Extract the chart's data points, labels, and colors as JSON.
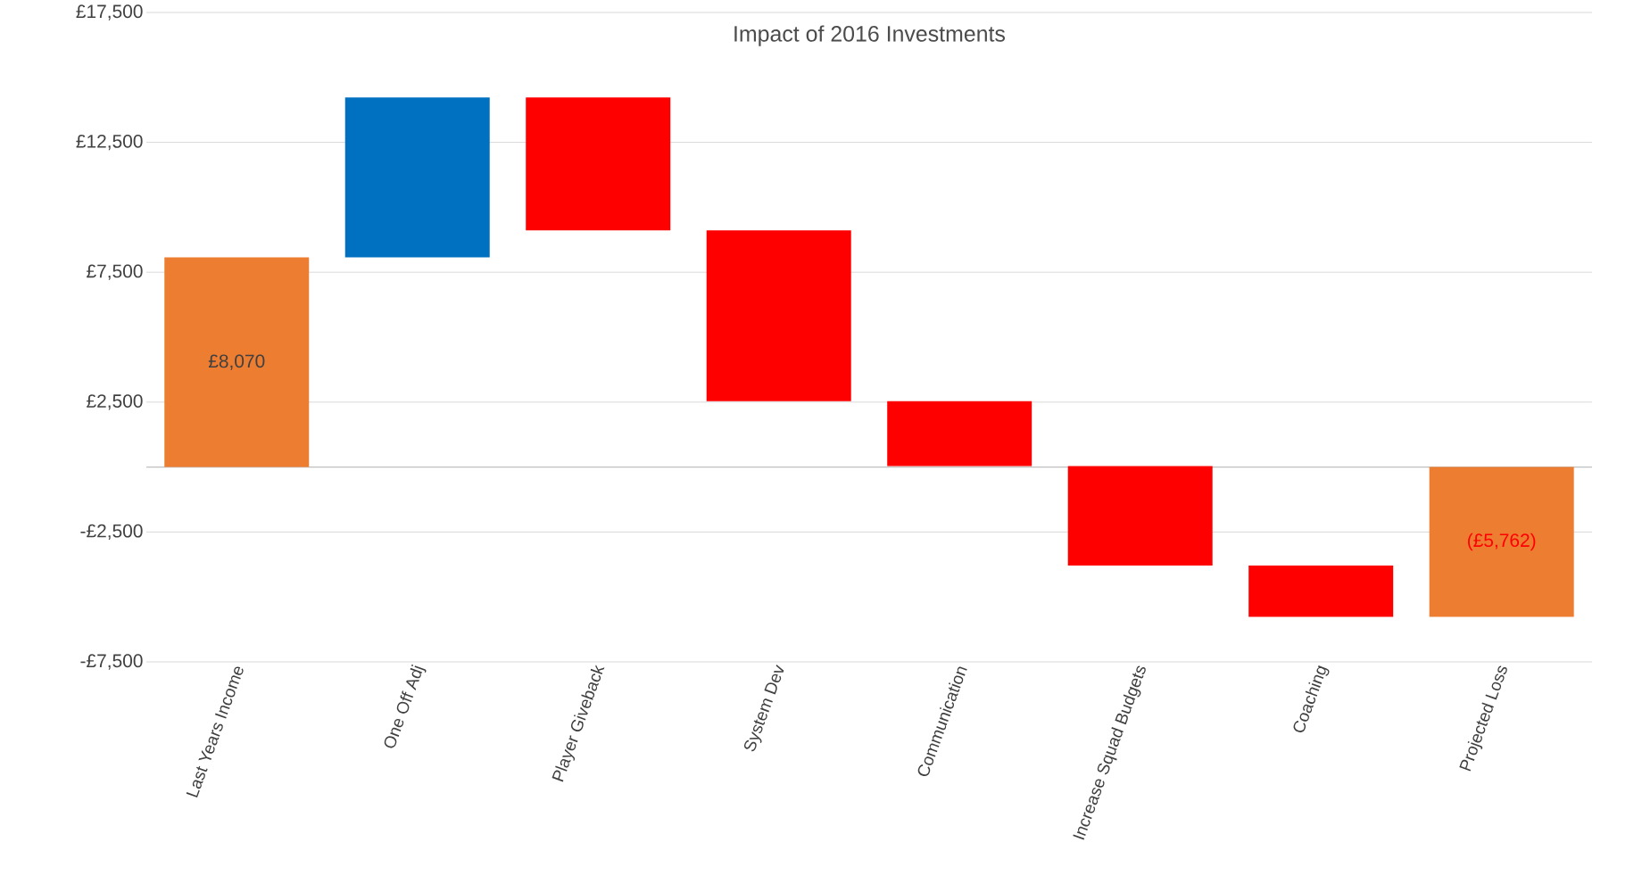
{
  "chart_data": {
    "type": "bar",
    "title": "Impact of 2016 Investments",
    "categories": [
      "Last Years Income",
      "One Off Adj",
      "Player Giveback",
      "System Dev",
      "Communication",
      "Increase Squad Budgets",
      "Coaching",
      "Projected Loss"
    ],
    "values": [
      8070,
      6160,
      -5120,
      -6570,
      -2500,
      -3830,
      -1972,
      -5762
    ],
    "base": [
      0,
      8070,
      14230,
      9110,
      2540,
      40,
      -3790,
      0
    ],
    "colors": [
      "#ed7d31",
      "#0070c0",
      "#ff0000",
      "#ff0000",
      "#ff0000",
      "#ff0000",
      "#ff0000",
      "#ed7d31"
    ],
    "value_labels": [
      "£8,070",
      null,
      null,
      null,
      null,
      null,
      null,
      "(£5,762)"
    ],
    "ylim": [
      -7500,
      17500
    ],
    "yticks": [
      {
        "value": -7500,
        "label": "-£7,500"
      },
      {
        "value": -2500,
        "label": "-£2,500"
      },
      {
        "value": 2500,
        "label": "£2,500"
      },
      {
        "value": 7500,
        "label": "£7,500"
      },
      {
        "value": 12500,
        "label": "£12,500"
      },
      {
        "value": 17500,
        "label": "£17,500"
      }
    ],
    "grid": "y"
  }
}
